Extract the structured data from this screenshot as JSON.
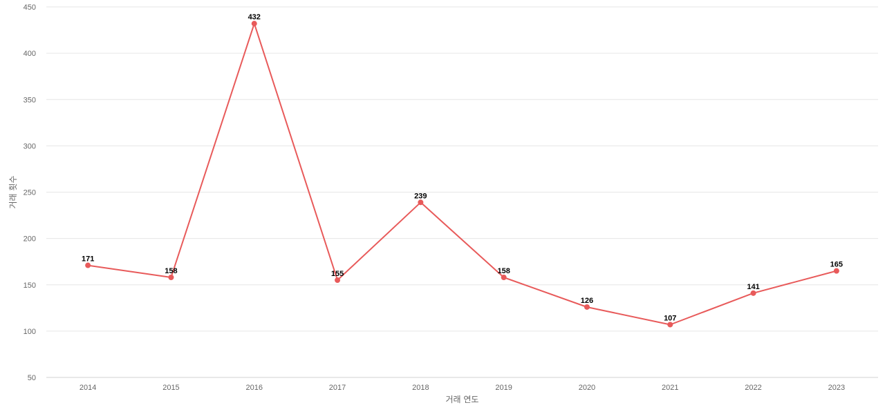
{
  "chart_data": {
    "type": "line",
    "title": "",
    "xlabel": "거래 연도",
    "ylabel": "거래 횟수",
    "categories": [
      "2014",
      "2015",
      "2016",
      "2017",
      "2018",
      "2019",
      "2020",
      "2021",
      "2022",
      "2023"
    ],
    "series": [
      {
        "values": [
          171,
          158,
          432,
          155,
          239,
          158,
          126,
          107,
          141,
          165
        ]
      }
    ],
    "ylim": [
      50,
      450
    ],
    "yticks": [
      50,
      100,
      150,
      200,
      250,
      300,
      350,
      400,
      450
    ],
    "grid": true,
    "legend": "none",
    "data_labels": true,
    "line_color": "#e85a5a",
    "label_color": "#000000"
  }
}
